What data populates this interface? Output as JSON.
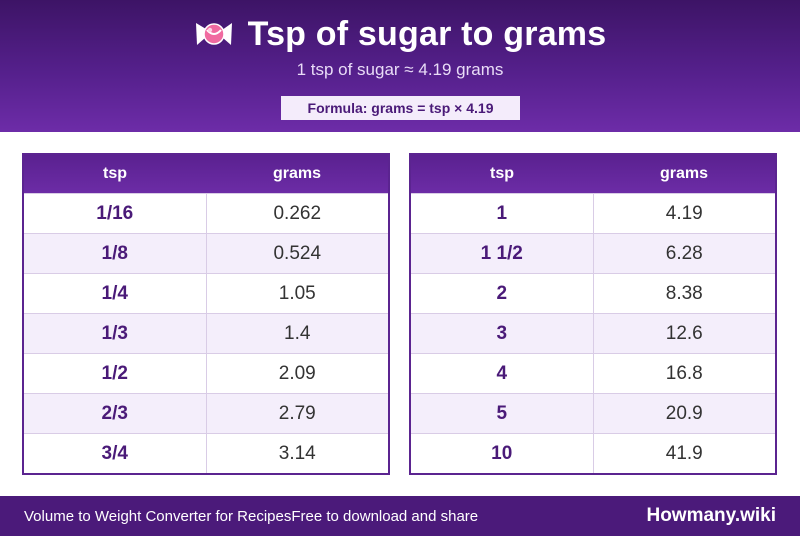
{
  "header": {
    "icon": "candy-icon",
    "title": "Tsp of sugar to grams",
    "subtitle": "1 tsp of sugar ≈ 4.19 grams",
    "formula": "Formula: grams = tsp × 4.19"
  },
  "colors": {
    "header_top": "#3d1466",
    "header_bottom": "#6d2ca8",
    "accent": "#5b2490",
    "row_alt": "#f4eefb",
    "footer": "#4b1a7a"
  },
  "tables": {
    "left": {
      "columns": [
        "tsp",
        "grams"
      ],
      "rows": [
        {
          "tsp": "1/16",
          "grams": "0.262"
        },
        {
          "tsp": "1/8",
          "grams": "0.524"
        },
        {
          "tsp": "1/4",
          "grams": "1.05"
        },
        {
          "tsp": "1/3",
          "grams": "1.4"
        },
        {
          "tsp": "1/2",
          "grams": "2.09"
        },
        {
          "tsp": "2/3",
          "grams": "2.79"
        },
        {
          "tsp": "3/4",
          "grams": "3.14"
        }
      ]
    },
    "right": {
      "columns": [
        "tsp",
        "grams"
      ],
      "rows": [
        {
          "tsp": "1",
          "grams": "4.19"
        },
        {
          "tsp": "1 1/2",
          "grams": "6.28"
        },
        {
          "tsp": "2",
          "grams": "8.38"
        },
        {
          "tsp": "3",
          "grams": "12.6"
        },
        {
          "tsp": "4",
          "grams": "16.8"
        },
        {
          "tsp": "5",
          "grams": "20.9"
        },
        {
          "tsp": "10",
          "grams": "41.9"
        }
      ]
    }
  },
  "footer": {
    "left_text": "Volume to Weight Converter for Recipes",
    "middle_text": "Free to download and share",
    "brand": "Howmany.wiki"
  }
}
